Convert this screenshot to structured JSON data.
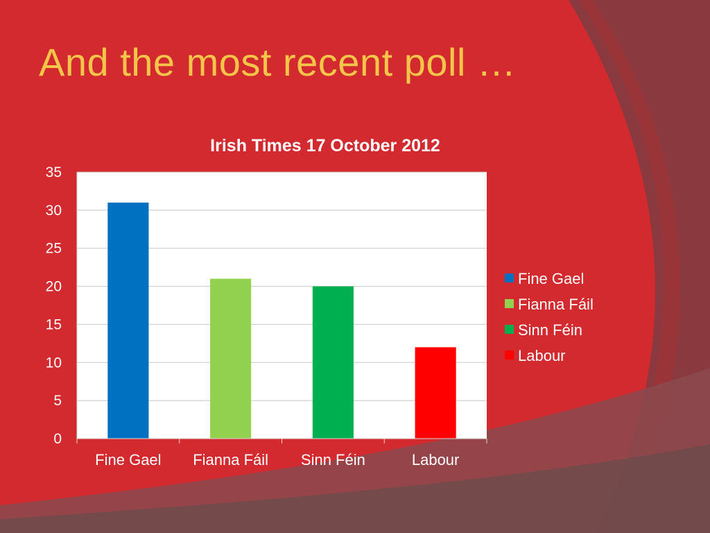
{
  "slide": {
    "title": "And the most recent poll …",
    "background_color": "#d22a2e",
    "title_color": "#f5c54a"
  },
  "chart_data": {
    "type": "bar",
    "title": "Irish Times 17 October 2012",
    "categories": [
      "Fine Gael",
      "Fianna Fáil",
      "Sinn Féin",
      "Labour"
    ],
    "values": [
      31,
      21,
      20,
      12
    ],
    "colors": [
      "#0070c0",
      "#92d050",
      "#00b050",
      "#ff0000"
    ],
    "xlabel": "",
    "ylabel": "",
    "ylim": [
      0,
      35
    ],
    "yticks": [
      0,
      5,
      10,
      15,
      20,
      25,
      30,
      35
    ],
    "grid": true,
    "legend": {
      "position": "right",
      "entries": [
        "Fine Gael",
        "Fianna Fáil",
        "Sinn Féin",
        "Labour"
      ]
    }
  }
}
